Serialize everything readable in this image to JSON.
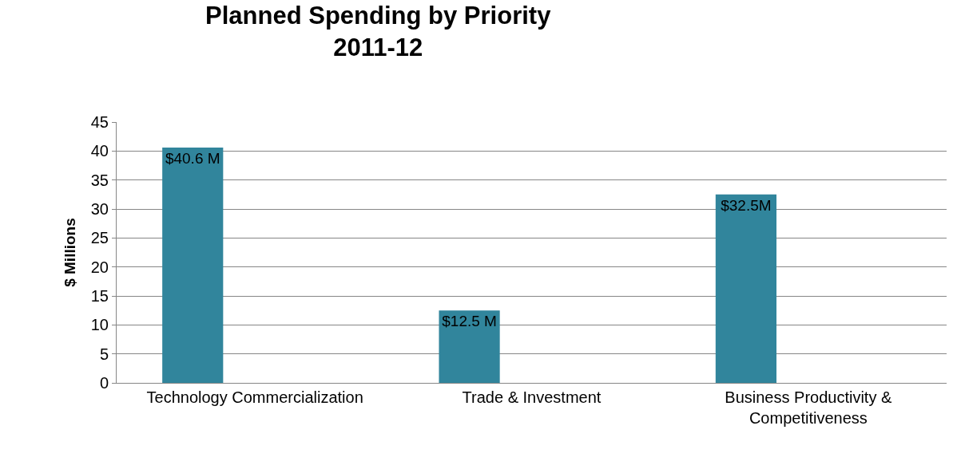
{
  "chart_data": {
    "type": "bar",
    "title": "Planned Spending by Priority\n2011-12",
    "ylabel": "$ Millions",
    "categories": [
      "Technology Commercialization",
      "Trade & Investment",
      "Business Productivity & Competitiveness"
    ],
    "values": [
      40.6,
      12.5,
      32.5
    ],
    "value_labels": [
      "$40.6 M",
      "$12.5 M",
      "$32.5M"
    ],
    "color": "#31859c",
    "ylim": [
      0,
      45
    ],
    "yticks": [
      0,
      5,
      10,
      15,
      20,
      25,
      30,
      35,
      40,
      45
    ],
    "grid": "y",
    "legend": false
  }
}
